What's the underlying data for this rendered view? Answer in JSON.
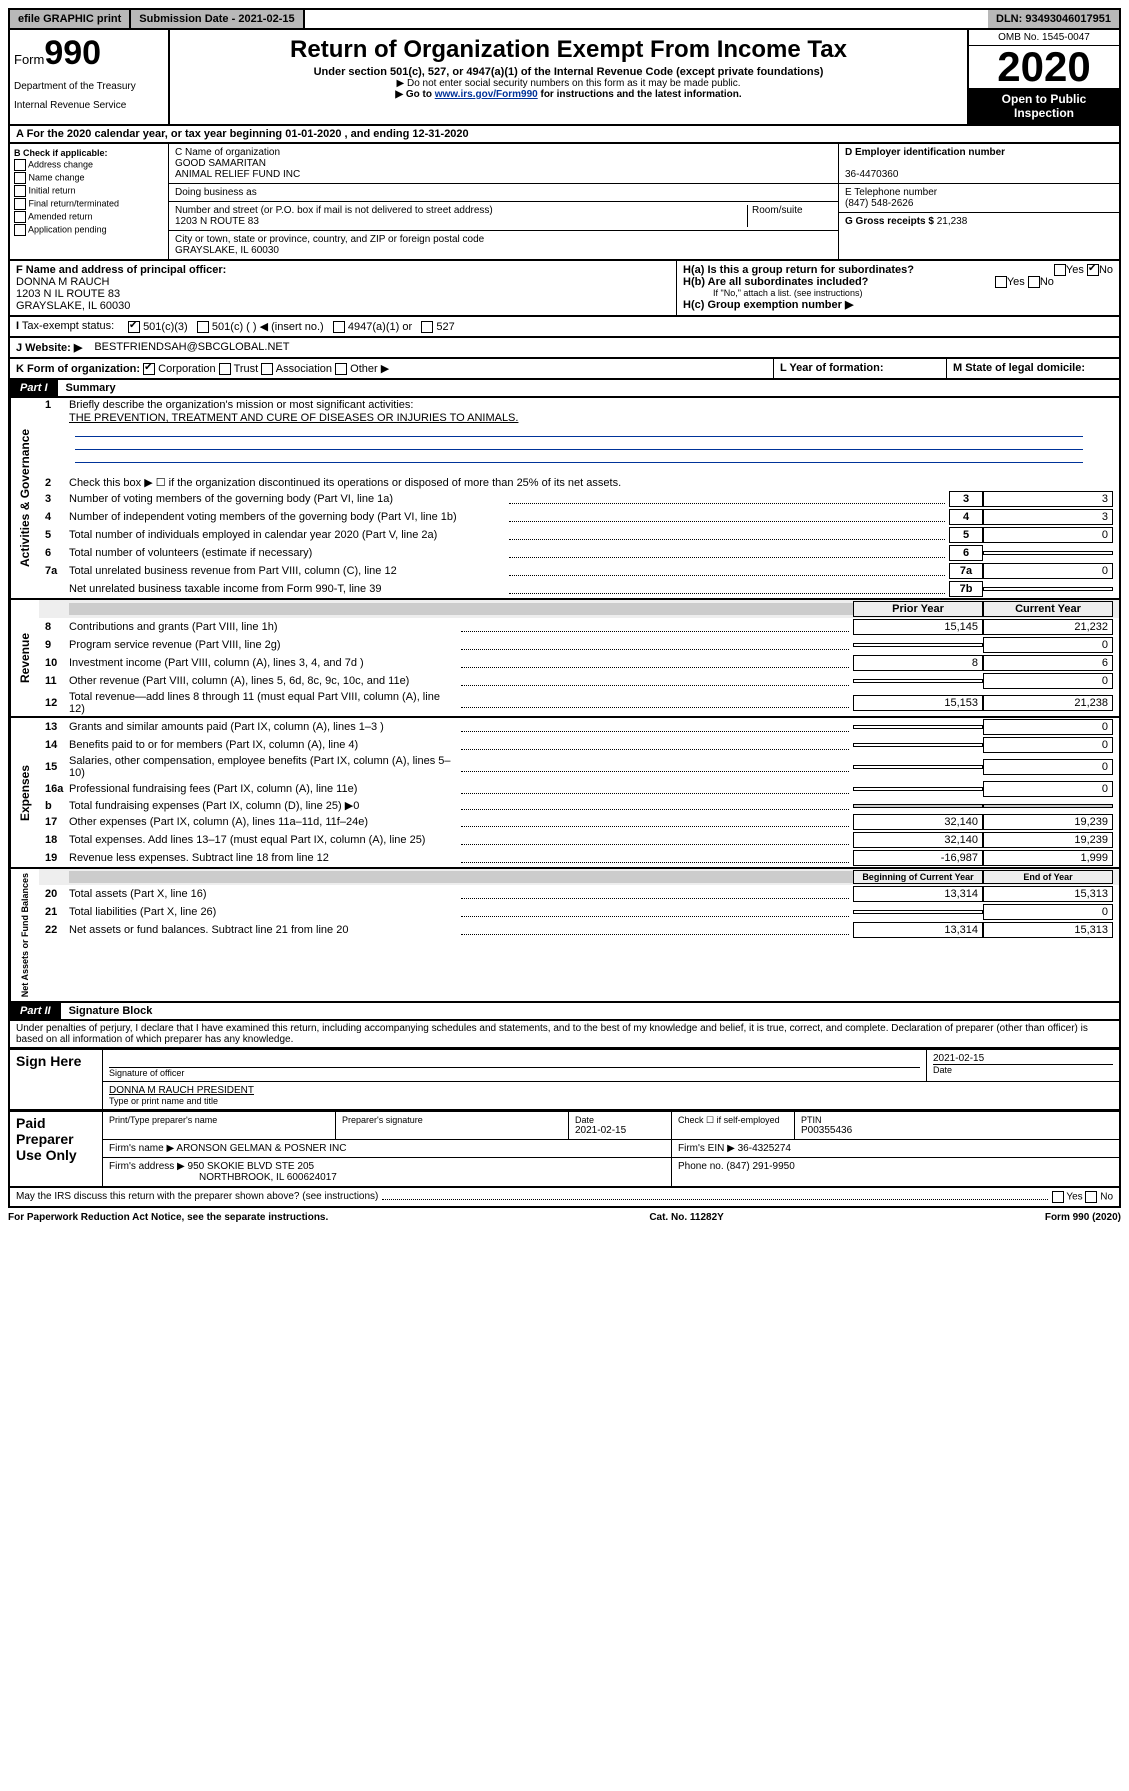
{
  "topbar": {
    "efile": "efile GRAPHIC print",
    "subdate_label": "Submission Date - ",
    "subdate": "2021-02-15",
    "dln_label": "DLN: ",
    "dln": "93493046017951"
  },
  "header": {
    "form_prefix": "Form",
    "form_num": "990",
    "dept1": "Department of the Treasury",
    "dept2": "Internal Revenue Service",
    "title": "Return of Organization Exempt From Income Tax",
    "subtitle": "Under section 501(c), 527, or 4947(a)(1) of the Internal Revenue Code (except private foundations)",
    "note1": "▶ Do not enter social security numbers on this form as it may be made public.",
    "note2_pre": "▶ Go to ",
    "note2_link": "www.irs.gov/Form990",
    "note2_post": " for instructions and the latest information.",
    "omb": "OMB No. 1545-0047",
    "year": "2020",
    "open": "Open to Public Inspection"
  },
  "sectionA": {
    "text_pre": "A For the 2020 calendar year, or tax year beginning ",
    "begin": "01-01-2020",
    "mid": " , and ending ",
    "end": "12-31-2020"
  },
  "boxB": {
    "label": "B Check if applicable:",
    "opts": [
      "Address change",
      "Name change",
      "Initial return",
      "Final return/terminated",
      "Amended return",
      "Application pending"
    ]
  },
  "boxC": {
    "name_label": "C Name of organization",
    "name1": "GOOD SAMARITAN",
    "name2": "ANIMAL RELIEF FUND INC",
    "dba": "Doing business as",
    "addr_label": "Number and street (or P.O. box if mail is not delivered to street address)",
    "room": "Room/suite",
    "addr": "1203 N ROUTE 83",
    "city_label": "City or town, state or province, country, and ZIP or foreign postal code",
    "city": "GRAYSLAKE, IL  60030"
  },
  "boxD": {
    "label": "D Employer identification number",
    "ein": "36-4470360"
  },
  "boxE": {
    "label": "E Telephone number",
    "phone": "(847) 548-2626"
  },
  "boxG": {
    "label": "G Gross receipts $ ",
    "val": "21,238"
  },
  "boxF": {
    "label": "F Name and address of principal officer:",
    "name": "DONNA M RAUCH",
    "addr1": "1203 N IL ROUTE 83",
    "addr2": "GRAYSLAKE, IL  60030"
  },
  "boxH": {
    "a": "H(a)  Is this a group return for subordinates?",
    "b": "H(b)  Are all subordinates included?",
    "note": "If \"No,\" attach a list. (see instructions)",
    "c": "H(c)  Group exemption number ▶"
  },
  "taxStatus": {
    "label": "Tax-exempt status:",
    "opt1": "501(c)(3)",
    "opt2": "501(c) (   ) ◀ (insert no.)",
    "opt3": "4947(a)(1) or",
    "opt4": "527"
  },
  "website": {
    "label": "J   Website: ▶",
    "val": "BESTFRIENDSAH@SBCGLOBAL.NET"
  },
  "boxK": {
    "label": "K Form of organization:",
    "opts": [
      "Corporation",
      "Trust",
      "Association",
      "Other ▶"
    ]
  },
  "boxL": "L Year of formation:",
  "boxM": "M State of legal domicile:",
  "part1": {
    "label": "Part I",
    "title": "Summary",
    "q1": "Briefly describe the organization's mission or most significant activities:",
    "mission": "THE PREVENTION, TREATMENT AND CURE OF DISEASES OR INJURIES TO ANIMALS.",
    "q2": "Check this box ▶ ☐  if the organization discontinued its operations or disposed of more than 25% of its net assets.",
    "lines_gov": [
      {
        "n": "3",
        "d": "Number of voting members of the governing body (Part VI, line 1a)",
        "b": "3",
        "v": "3"
      },
      {
        "n": "4",
        "d": "Number of independent voting members of the governing body (Part VI, line 1b)",
        "b": "4",
        "v": "3"
      },
      {
        "n": "5",
        "d": "Total number of individuals employed in calendar year 2020 (Part V, line 2a)",
        "b": "5",
        "v": "0"
      },
      {
        "n": "6",
        "d": "Total number of volunteers (estimate if necessary)",
        "b": "6",
        "v": ""
      },
      {
        "n": "7a",
        "d": "Total unrelated business revenue from Part VIII, column (C), line 12",
        "b": "7a",
        "v": "0"
      },
      {
        "n": "",
        "d": "Net unrelated business taxable income from Form 990-T, line 39",
        "b": "7b",
        "v": ""
      }
    ],
    "col_headers": {
      "prior": "Prior Year",
      "current": "Current Year"
    },
    "rev": [
      {
        "n": "8",
        "d": "Contributions and grants (Part VIII, line 1h)",
        "p": "15,145",
        "c": "21,232"
      },
      {
        "n": "9",
        "d": "Program service revenue (Part VIII, line 2g)",
        "p": "",
        "c": "0"
      },
      {
        "n": "10",
        "d": "Investment income (Part VIII, column (A), lines 3, 4, and 7d )",
        "p": "8",
        "c": "6"
      },
      {
        "n": "11",
        "d": "Other revenue (Part VIII, column (A), lines 5, 6d, 8c, 9c, 10c, and 11e)",
        "p": "",
        "c": "0"
      },
      {
        "n": "12",
        "d": "Total revenue—add lines 8 through 11 (must equal Part VIII, column (A), line 12)",
        "p": "15,153",
        "c": "21,238"
      }
    ],
    "exp": [
      {
        "n": "13",
        "d": "Grants and similar amounts paid (Part IX, column (A), lines 1–3 )",
        "p": "",
        "c": "0"
      },
      {
        "n": "14",
        "d": "Benefits paid to or for members (Part IX, column (A), line 4)",
        "p": "",
        "c": "0"
      },
      {
        "n": "15",
        "d": "Salaries, other compensation, employee benefits (Part IX, column (A), lines 5–10)",
        "p": "",
        "c": "0"
      },
      {
        "n": "16a",
        "d": "Professional fundraising fees (Part IX, column (A), line 11e)",
        "p": "",
        "c": "0"
      },
      {
        "n": "b",
        "d": "Total fundraising expenses (Part IX, column (D), line 25) ▶0",
        "p": "grey",
        "c": "grey"
      },
      {
        "n": "17",
        "d": "Other expenses (Part IX, column (A), lines 11a–11d, 11f–24e)",
        "p": "32,140",
        "c": "19,239"
      },
      {
        "n": "18",
        "d": "Total expenses. Add lines 13–17 (must equal Part IX, column (A), line 25)",
        "p": "32,140",
        "c": "19,239"
      },
      {
        "n": "19",
        "d": "Revenue less expenses. Subtract line 18 from line 12",
        "p": "-16,987",
        "c": "1,999"
      }
    ],
    "col_headers2": {
      "prior": "Beginning of Current Year",
      "current": "End of Year"
    },
    "net": [
      {
        "n": "20",
        "d": "Total assets (Part X, line 16)",
        "p": "13,314",
        "c": "15,313"
      },
      {
        "n": "21",
        "d": "Total liabilities (Part X, line 26)",
        "p": "",
        "c": "0"
      },
      {
        "n": "22",
        "d": "Net assets or fund balances. Subtract line 21 from line 20",
        "p": "13,314",
        "c": "15,313"
      }
    ],
    "vtabs": {
      "gov": "Activities & Governance",
      "rev": "Revenue",
      "exp": "Expenses",
      "net": "Net Assets or Fund Balances"
    }
  },
  "part2": {
    "label": "Part II",
    "title": "Signature Block",
    "perjury": "Under penalties of perjury, I declare that I have examined this return, including accompanying schedules and statements, and to the best of my knowledge and belief, it is true, correct, and complete. Declaration of preparer (other than officer) is based on all information of which preparer has any knowledge."
  },
  "sign": {
    "here": "Sign Here",
    "sig_officer": "Signature of officer",
    "date": "2021-02-15",
    "date_label": "Date",
    "name": "DONNA M RAUCH  PRESIDENT",
    "name_label": "Type or print name and title"
  },
  "paid": {
    "label": "Paid Preparer Use Only",
    "h1": "Print/Type preparer's name",
    "h2": "Preparer's signature",
    "h3": "Date",
    "date": "2021-02-15",
    "h4": "Check ☐ if self-employed",
    "h5": "PTIN",
    "ptin": "P00355436",
    "firm_label": "Firm's name    ▶",
    "firm": "ARONSON GELMAN & POSNER INC",
    "ein_label": "Firm's EIN ▶",
    "ein": "36-4325274",
    "addr_label": "Firm's address ▶",
    "addr1": "950 SKOKIE BLVD STE 205",
    "addr2": "NORTHBROOK, IL  600624017",
    "phone_label": "Phone no. ",
    "phone": "(847) 291-9950"
  },
  "discuss": "May the IRS discuss this return with the preparer shown above? (see instructions)",
  "footer": {
    "left": "For Paperwork Reduction Act Notice, see the separate instructions.",
    "mid": "Cat. No. 11282Y",
    "right": "Form 990 (2020)"
  }
}
